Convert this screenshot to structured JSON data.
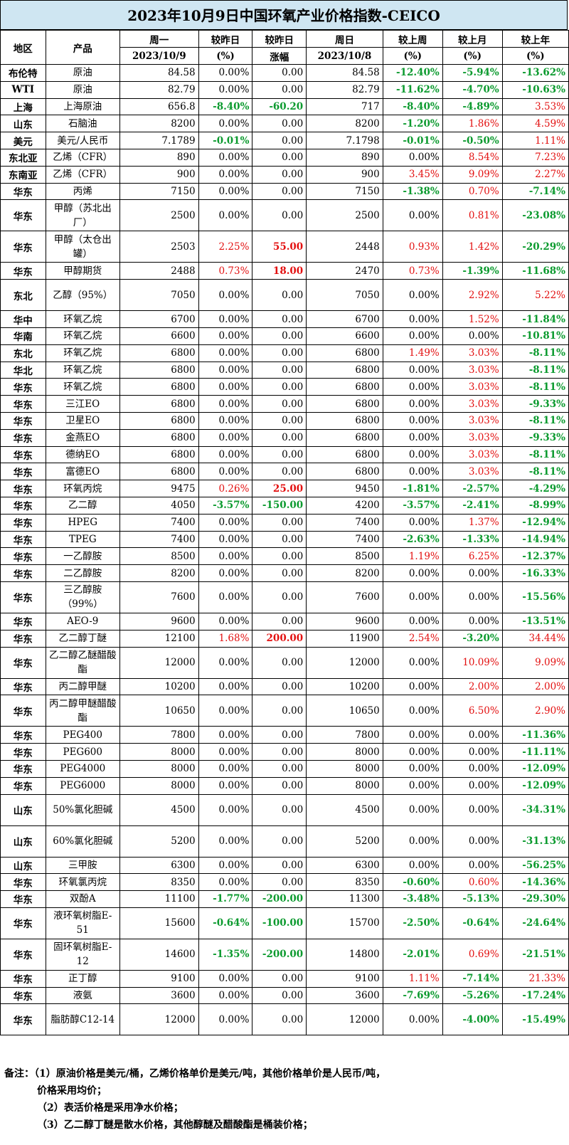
{
  "title": "2023年10月9日中国环氧产业价格指数-CEICO",
  "header": {
    "region": "地区",
    "product": "产品",
    "mon": "周一",
    "mon_date": "2023/10/9",
    "chg_pct": "较昨日",
    "chg_pct_unit": "(%)",
    "chg_abs": "较昨日",
    "chg_abs_unit": "涨幅",
    "sun": "周日",
    "sun_date": "2023/10/8",
    "wk": "较上周",
    "wk_unit": "(%)",
    "mo": "较上月",
    "mo_unit": "(%)",
    "yr": "较上年",
    "yr_unit": "(%)"
  },
  "rows": [
    {
      "region": "布伦特",
      "product": "原油",
      "price": "84.58",
      "d_pct": "0.00%",
      "d_abs": "0.00",
      "prev": "84.58",
      "wk": "-12.40%",
      "mo": "-5.94%",
      "yr": "-13.62%"
    },
    {
      "region": "WTI",
      "product": "原油",
      "price": "82.79",
      "d_pct": "0.00%",
      "d_abs": "0.00",
      "prev": "82.79",
      "wk": "-11.62%",
      "mo": "-4.70%",
      "yr": "-10.63%"
    },
    {
      "region": "上海",
      "product": "上海原油",
      "price": "656.8",
      "d_pct": "-8.40%",
      "d_abs": "-60.20",
      "prev": "717",
      "wk": "-8.40%",
      "mo": "-4.89%",
      "yr": "3.53%"
    },
    {
      "region": "山东",
      "product": "石脑油",
      "price": "8200",
      "d_pct": "0.00%",
      "d_abs": "0.00",
      "prev": "8200",
      "wk": "-1.20%",
      "mo": "1.86%",
      "yr": "4.59%"
    },
    {
      "region": "美元",
      "product": "美元/人民币",
      "price": "7.1789",
      "d_pct": "-0.01%",
      "d_abs": "0.00",
      "prev": "7.1798",
      "wk": "-0.01%",
      "mo": "-0.50%",
      "yr": "1.11%"
    },
    {
      "region": "东北亚",
      "product": "乙烯（CFR）",
      "price": "890",
      "d_pct": "0.00%",
      "d_abs": "0.00",
      "prev": "890",
      "wk": "0.00%",
      "mo": "8.54%",
      "yr": "7.23%"
    },
    {
      "region": "东南亚",
      "product": "乙烯（CFR）",
      "price": "900",
      "d_pct": "0.00%",
      "d_abs": "0.00",
      "prev": "900",
      "wk": "3.45%",
      "mo": "9.09%",
      "yr": "2.27%"
    },
    {
      "region": "华东",
      "product": "丙烯",
      "price": "7150",
      "d_pct": "0.00%",
      "d_abs": "0.00",
      "prev": "7150",
      "wk": "-1.38%",
      "mo": "0.70%",
      "yr": "-7.14%"
    },
    {
      "region": "华东",
      "product": "甲醇（苏北出厂）",
      "price": "2500",
      "d_pct": "0.00%",
      "d_abs": "0.00",
      "prev": "2500",
      "wk": "0.00%",
      "mo": "0.81%",
      "yr": "-23.08%"
    },
    {
      "region": "华东",
      "product": "甲醇（太仓出罐）",
      "price": "2503",
      "d_pct": "2.25%",
      "d_abs": "55.00",
      "prev": "2448",
      "wk": "0.93%",
      "mo": "1.42%",
      "yr": "-20.29%"
    },
    {
      "region": "华东",
      "product": "甲醇期货",
      "price": "2488",
      "d_pct": "0.73%",
      "d_abs": "18.00",
      "prev": "2470",
      "wk": "0.73%",
      "mo": "-1.39%",
      "yr": "-11.68%"
    },
    {
      "region": "东北",
      "product": "乙醇（95%）",
      "price": "7050",
      "d_pct": "0.00%",
      "d_abs": "0.00",
      "prev": "7050",
      "wk": "0.00%",
      "mo": "2.92%",
      "yr": "5.22%"
    },
    {
      "region": "华中",
      "product": "环氧乙烷",
      "price": "6700",
      "d_pct": "0.00%",
      "d_abs": "0.00",
      "prev": "6700",
      "wk": "0.00%",
      "mo": "1.52%",
      "yr": "-11.84%"
    },
    {
      "region": "华南",
      "product": "环氧乙烷",
      "price": "6600",
      "d_pct": "0.00%",
      "d_abs": "0.00",
      "prev": "6600",
      "wk": "0.00%",
      "mo": "0.00%",
      "yr": "-10.81%"
    },
    {
      "region": "东北",
      "product": "环氧乙烷",
      "price": "6800",
      "d_pct": "0.00%",
      "d_abs": "0.00",
      "prev": "6800",
      "wk": "1.49%",
      "mo": "3.03%",
      "yr": "-8.11%"
    },
    {
      "region": "华北",
      "product": "环氧乙烷",
      "price": "6800",
      "d_pct": "0.00%",
      "d_abs": "0.00",
      "prev": "6800",
      "wk": "0.00%",
      "mo": "3.03%",
      "yr": "-8.11%"
    },
    {
      "region": "华东",
      "product": "环氧乙烷",
      "price": "6800",
      "d_pct": "0.00%",
      "d_abs": "0.00",
      "prev": "6800",
      "wk": "0.00%",
      "mo": "3.03%",
      "yr": "-8.11%"
    },
    {
      "region": "华东",
      "product": "三江EO",
      "price": "6800",
      "d_pct": "0.00%",
      "d_abs": "0.00",
      "prev": "6800",
      "wk": "0.00%",
      "mo": "3.03%",
      "yr": "-9.33%"
    },
    {
      "region": "华东",
      "product": "卫星EO",
      "price": "6800",
      "d_pct": "0.00%",
      "d_abs": "0.00",
      "prev": "6800",
      "wk": "0.00%",
      "mo": "3.03%",
      "yr": "-8.11%"
    },
    {
      "region": "华东",
      "product": "金燕EO",
      "price": "6800",
      "d_pct": "0.00%",
      "d_abs": "0.00",
      "prev": "6800",
      "wk": "0.00%",
      "mo": "3.03%",
      "yr": "-9.33%"
    },
    {
      "region": "华东",
      "product": "德纳EO",
      "price": "6800",
      "d_pct": "0.00%",
      "d_abs": "0.00",
      "prev": "6800",
      "wk": "0.00%",
      "mo": "3.03%",
      "yr": "-8.11%"
    },
    {
      "region": "华东",
      "product": "富德EO",
      "price": "6800",
      "d_pct": "0.00%",
      "d_abs": "0.00",
      "prev": "6800",
      "wk": "0.00%",
      "mo": "3.03%",
      "yr": "-8.11%"
    },
    {
      "region": "华东",
      "product": "环氧丙烷",
      "price": "9475",
      "d_pct": "0.26%",
      "d_abs": "25.00",
      "prev": "9450",
      "wk": "-1.81%",
      "mo": "-2.57%",
      "yr": "-4.29%"
    },
    {
      "region": "华东",
      "product": "乙二醇",
      "price": "4050",
      "d_pct": "-3.57%",
      "d_abs": "-150.00",
      "prev": "4200",
      "wk": "-3.57%",
      "mo": "-2.41%",
      "yr": "-8.99%"
    },
    {
      "region": "华东",
      "product": "HPEG",
      "price": "7400",
      "d_pct": "0.00%",
      "d_abs": "0.00",
      "prev": "7400",
      "wk": "0.00%",
      "mo": "1.37%",
      "yr": "-12.94%"
    },
    {
      "region": "华东",
      "product": "TPEG",
      "price": "7400",
      "d_pct": "0.00%",
      "d_abs": "0.00",
      "prev": "7400",
      "wk": "-2.63%",
      "mo": "-1.33%",
      "yr": "-14.94%"
    },
    {
      "region": "华东",
      "product": "一乙醇胺",
      "price": "8500",
      "d_pct": "0.00%",
      "d_abs": "0.00",
      "prev": "8500",
      "wk": "1.19%",
      "mo": "6.25%",
      "yr": "-12.37%"
    },
    {
      "region": "华东",
      "product": "二乙醇胺",
      "price": "8200",
      "d_pct": "0.00%",
      "d_abs": "0.00",
      "prev": "8200",
      "wk": "0.00%",
      "mo": "0.00%",
      "yr": "-16.33%"
    },
    {
      "region": "华东",
      "product": "三乙醇胺（99%）",
      "price": "7600",
      "d_pct": "0.00%",
      "d_abs": "0.00",
      "prev": "7600",
      "wk": "0.00%",
      "mo": "0.00%",
      "yr": "-15.56%"
    },
    {
      "region": "华东",
      "product": "AEO-9",
      "price": "9600",
      "d_pct": "0.00%",
      "d_abs": "0.00",
      "prev": "9600",
      "wk": "0.00%",
      "mo": "0.00%",
      "yr": "-13.51%"
    },
    {
      "region": "华东",
      "product": "乙二醇丁醚",
      "price": "12100",
      "d_pct": "1.68%",
      "d_abs": "200.00",
      "prev": "11900",
      "wk": "2.54%",
      "mo": "-3.20%",
      "yr": "34.44%"
    },
    {
      "region": "华东",
      "product": "乙二醇乙醚醋酸酯",
      "price": "12000",
      "d_pct": "0.00%",
      "d_abs": "0.00",
      "prev": "12000",
      "wk": "0.00%",
      "mo": "10.09%",
      "yr": "9.09%"
    },
    {
      "region": "华东",
      "product": "丙二醇甲醚",
      "price": "10200",
      "d_pct": "0.00%",
      "d_abs": "0.00",
      "prev": "10200",
      "wk": "0.00%",
      "mo": "2.00%",
      "yr": "2.00%"
    },
    {
      "region": "华东",
      "product": "丙二醇甲醚醋酸酯",
      "price": "10650",
      "d_pct": "0.00%",
      "d_abs": "0.00",
      "prev": "10650",
      "wk": "0.00%",
      "mo": "6.50%",
      "yr": "2.90%"
    },
    {
      "region": "华东",
      "product": "PEG400",
      "price": "7800",
      "d_pct": "0.00%",
      "d_abs": "0.00",
      "prev": "7800",
      "wk": "0.00%",
      "mo": "0.00%",
      "yr": "-11.36%"
    },
    {
      "region": "华东",
      "product": "PEG600",
      "price": "8000",
      "d_pct": "0.00%",
      "d_abs": "0.00",
      "prev": "8000",
      "wk": "0.00%",
      "mo": "0.00%",
      "yr": "-11.11%"
    },
    {
      "region": "华东",
      "product": "PEG4000",
      "price": "8000",
      "d_pct": "0.00%",
      "d_abs": "0.00",
      "prev": "8000",
      "wk": "0.00%",
      "mo": "0.00%",
      "yr": "-12.09%"
    },
    {
      "region": "华东",
      "product": "PEG6000",
      "price": "8000",
      "d_pct": "0.00%",
      "d_abs": "0.00",
      "prev": "8000",
      "wk": "0.00%",
      "mo": "0.00%",
      "yr": "-12.09%"
    },
    {
      "region": "山东",
      "product": "50%氯化胆碱",
      "price": "4500",
      "d_pct": "0.00%",
      "d_abs": "0.00",
      "prev": "4500",
      "wk": "0.00%",
      "mo": "0.00%",
      "yr": "-34.31%"
    },
    {
      "region": "山东",
      "product": "60%氯化胆碱",
      "price": "5200",
      "d_pct": "0.00%",
      "d_abs": "0.00",
      "prev": "5200",
      "wk": "0.00%",
      "mo": "0.00%",
      "yr": "-31.13%"
    },
    {
      "region": "山东",
      "product": "三甲胺",
      "price": "6300",
      "d_pct": "0.00%",
      "d_abs": "0.00",
      "prev": "6300",
      "wk": "0.00%",
      "mo": "0.00%",
      "yr": "-56.25%"
    },
    {
      "region": "华东",
      "product": "环氧氯丙烷",
      "price": "8350",
      "d_pct": "0.00%",
      "d_abs": "0.00",
      "prev": "8350",
      "wk": "-0.60%",
      "mo": "0.60%",
      "yr": "-14.36%"
    },
    {
      "region": "华东",
      "product": "双酚A",
      "price": "11100",
      "d_pct": "-1.77%",
      "d_abs": "-200.00",
      "prev": "11300",
      "wk": "-3.48%",
      "mo": "-5.13%",
      "yr": "-29.30%"
    },
    {
      "region": "华东",
      "product": "液环氧树脂E-51",
      "price": "15600",
      "d_pct": "-0.64%",
      "d_abs": "-100.00",
      "prev": "15700",
      "wk": "-2.50%",
      "mo": "-0.64%",
      "yr": "-24.64%"
    },
    {
      "region": "华东",
      "product": "固环氧树脂E-12",
      "price": "14600",
      "d_pct": "-1.35%",
      "d_abs": "-200.00",
      "prev": "14800",
      "wk": "-2.01%",
      "mo": "0.69%",
      "yr": "-21.51%"
    },
    {
      "region": "华东",
      "product": "正丁醇",
      "price": "9100",
      "d_pct": "0.00%",
      "d_abs": "0.00",
      "prev": "9100",
      "wk": "1.11%",
      "mo": "-7.14%",
      "yr": "21.33%"
    },
    {
      "region": "华东",
      "product": "液氨",
      "price": "3600",
      "d_pct": "0.00%",
      "d_abs": "0.00",
      "prev": "3600",
      "wk": "-7.69%",
      "mo": "-5.26%",
      "yr": "-17.24%"
    },
    {
      "region": "华东",
      "product": "脂肪醇C12-14",
      "price": "12000",
      "d_pct": "0.00%",
      "d_abs": "0.00",
      "prev": "12000",
      "wk": "0.00%",
      "mo": "-4.00%",
      "yr": "-15.49%"
    }
  ],
  "notes": {
    "line1": "备注：（1）原油价格是美元/桶，乙烯价格单价是美元/吨，其他价格单价是人民币/吨，",
    "line1b": "价格采用均价；",
    "line2": "（2）表活价格是采用净水价格；",
    "line3": "（3）乙二醇丁醚是散水价格，其他醇醚及醋酸酯是桶装价格；"
  }
}
